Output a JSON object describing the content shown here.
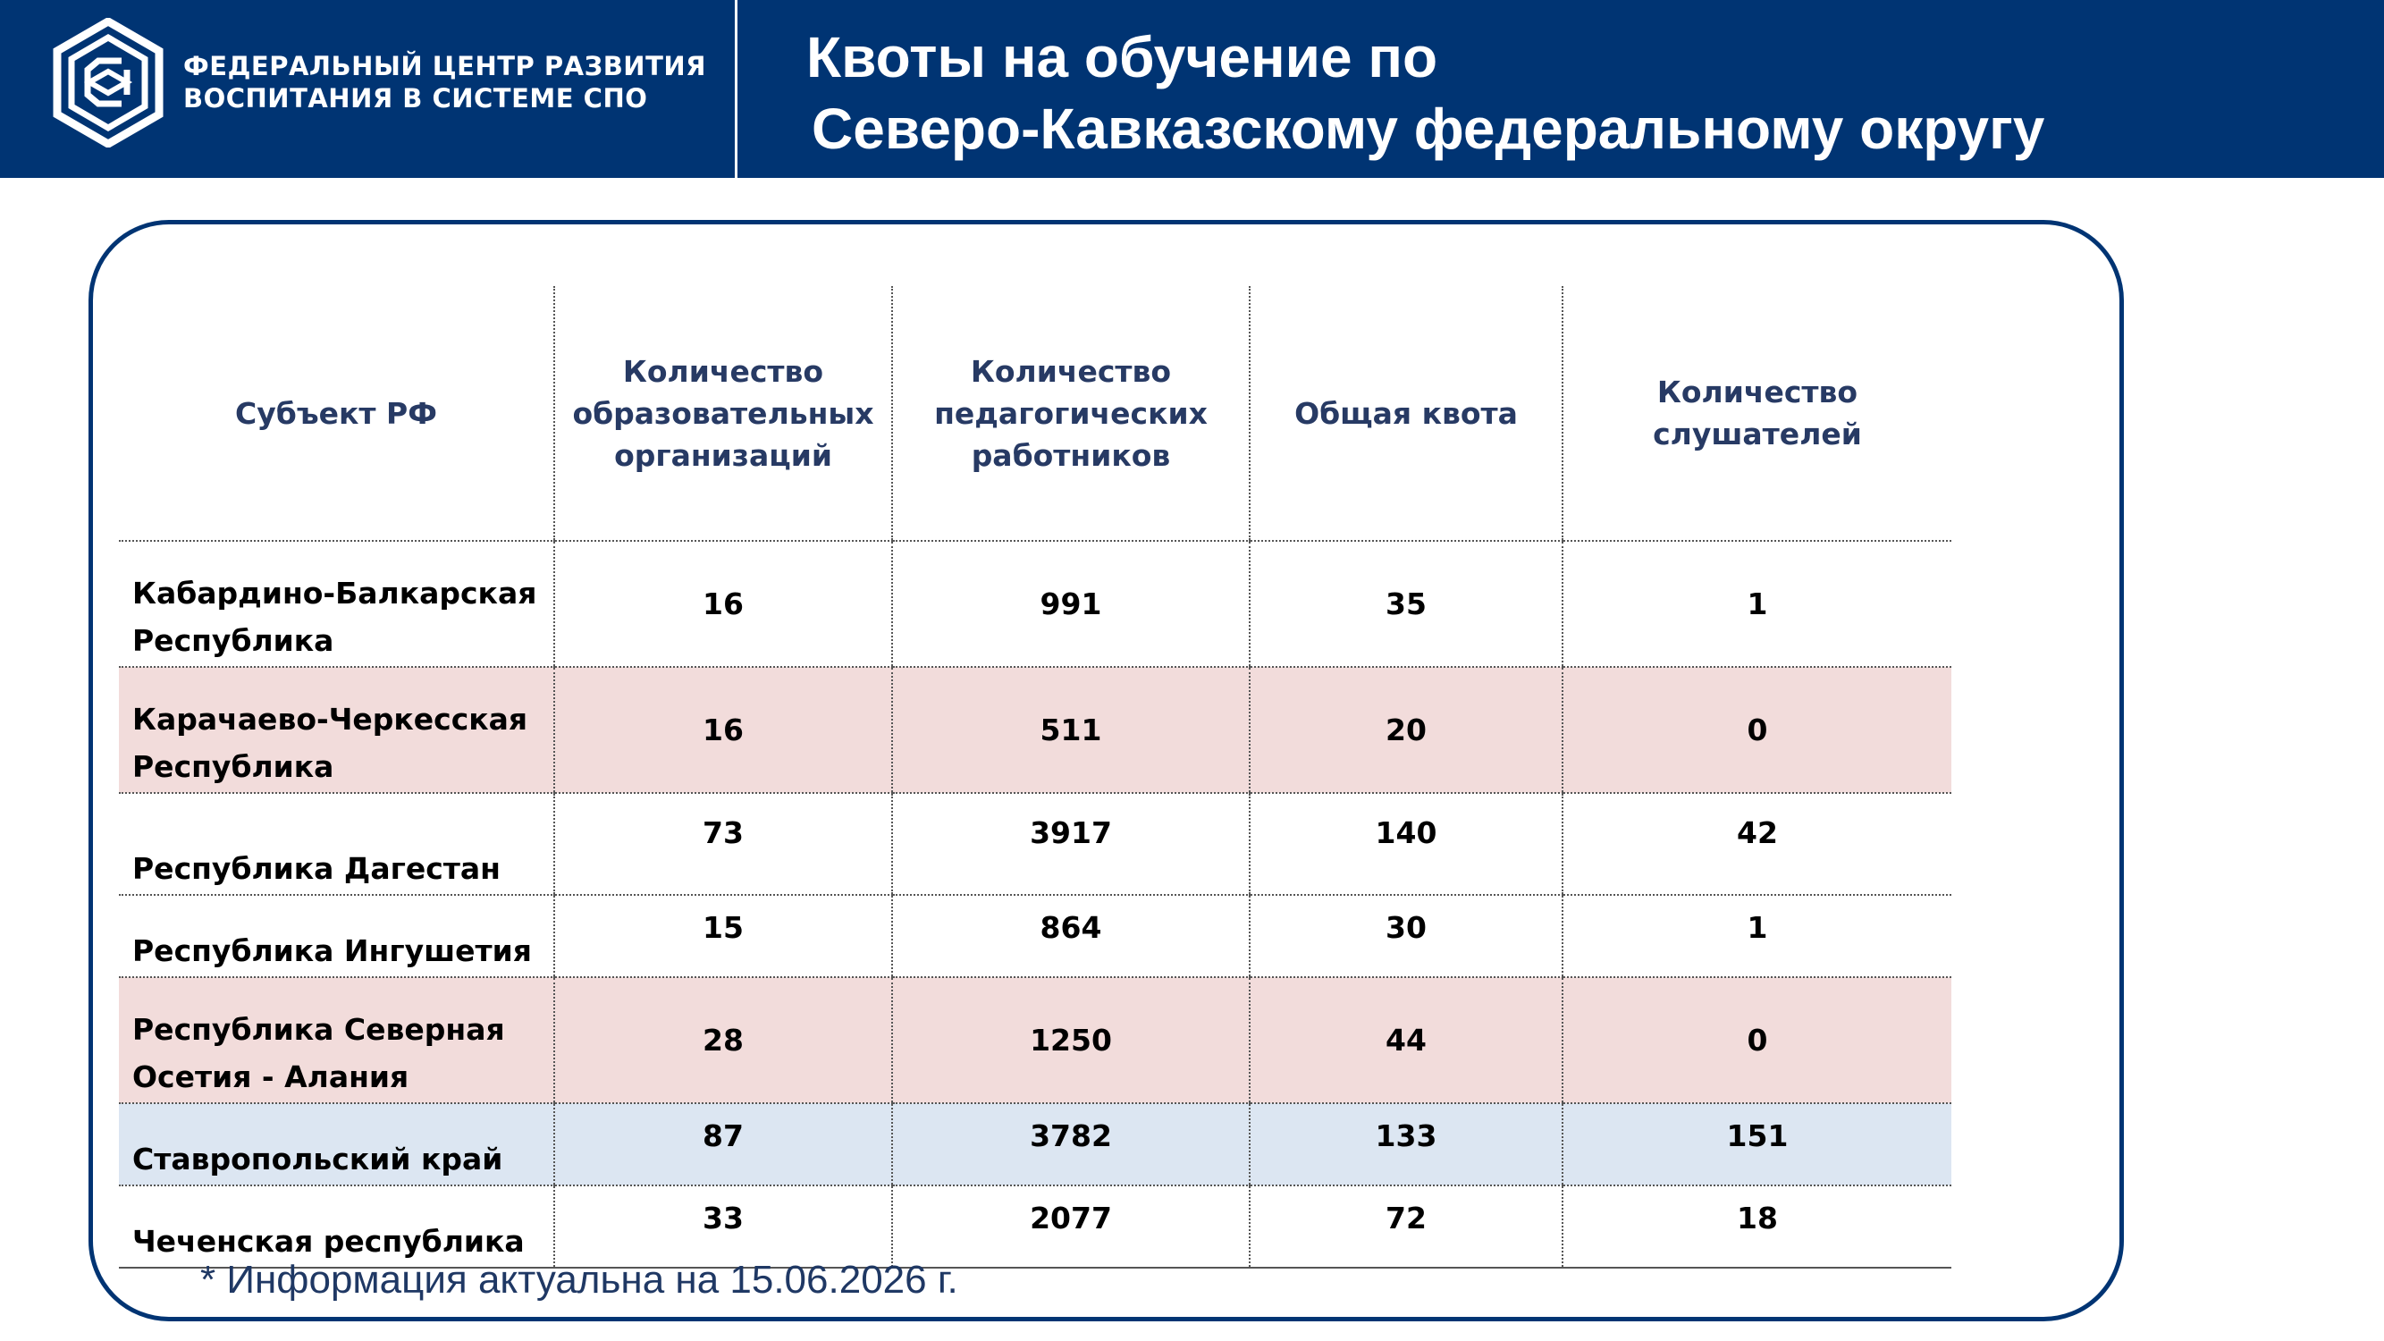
{
  "header": {
    "org_name_line1": "ФЕДЕРАЛЬНЫЙ ЦЕНТР РАЗВИТИЯ",
    "org_name_line2": "ВОСПИТАНИЯ В СИСТЕМЕ СПО",
    "title_line1": "Квоты на обучение по",
    "title_line2": "Северо-Кавказскому федеральному округу",
    "logo_icon": "hexagon-spo-logo-icon",
    "background_color": "#003473"
  },
  "table": {
    "headers": {
      "region": "Субъект РФ",
      "orgs": [
        "Количество",
        "образовательных",
        "организаций"
      ],
      "teachers": [
        "Количество",
        "педагогических",
        "работников"
      ],
      "quota": "Общая квота",
      "listeners": [
        "Количество",
        "слушателей"
      ]
    },
    "rows": [
      {
        "region": [
          "Кабардино-Балкарская",
          "Республика"
        ],
        "orgs": "16",
        "teachers": "991",
        "quota": "35",
        "listeners": "1"
      },
      {
        "region": [
          "Карачаево-Черкесская",
          "Республика"
        ],
        "orgs": "16",
        "teachers": "511",
        "quota": "20",
        "listeners": "0"
      },
      {
        "region": [
          "Республика Дагестан"
        ],
        "orgs": "73",
        "teachers": "3917",
        "quota": "140",
        "listeners": "42"
      },
      {
        "region": [
          "Республика Ингушетия"
        ],
        "orgs": "15",
        "teachers": "864",
        "quota": "30",
        "listeners": "1"
      },
      {
        "region": [
          "Республика Северная",
          "Осетия - Алания"
        ],
        "orgs": "28",
        "teachers": "1250",
        "quota": "44",
        "listeners": "0"
      },
      {
        "region": [
          "Ставропольский край"
        ],
        "orgs": "87",
        "teachers": "3782",
        "quota": "133",
        "listeners": "151"
      },
      {
        "region": [
          "Чеченская республика"
        ],
        "orgs": "33",
        "teachers": "2077",
        "quota": "72",
        "listeners": "18"
      }
    ],
    "row_colors": {
      "pink": "#f2dcdb",
      "blue": "#dce6f2"
    }
  },
  "footnote": "* Информация актуальна на 15.06.2026 г."
}
